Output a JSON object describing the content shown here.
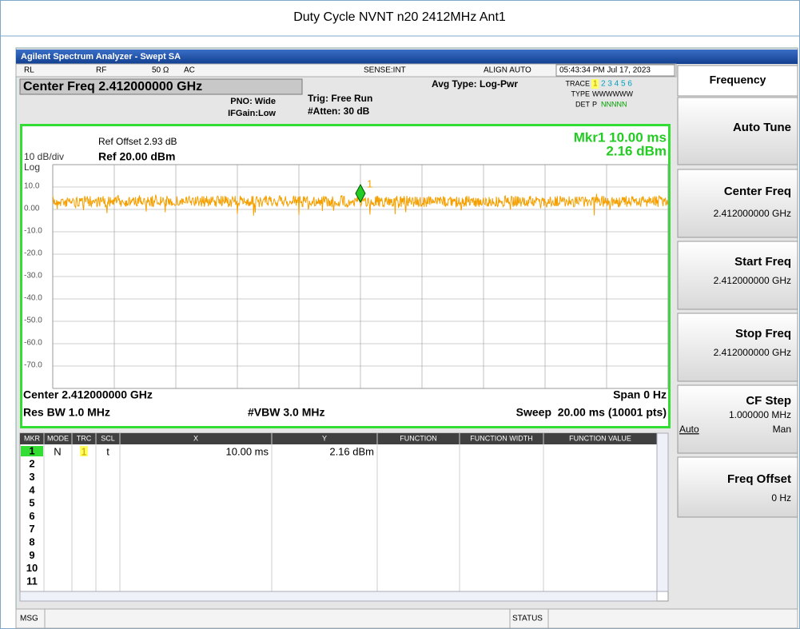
{
  "page_title": "Duty Cycle NVNT n20 2412MHz Ant1",
  "window": {
    "title": "Agilent Spectrum Analyzer - Swept SA"
  },
  "status_bar": {
    "rl": "RL",
    "rf": "RF",
    "impedance": "50 Ω",
    "coupling": "AC",
    "sense": "SENSE:INT",
    "align": "ALIGN AUTO",
    "time": "05:43:34 PM Jul 17, 2023"
  },
  "settings": {
    "center_freq": "Center Freq 2.412000000 GHz",
    "pno": "PNO: Wide",
    "ifgain": "IFGain:Low",
    "trig": "Trig: Free Run",
    "atten": "#Atten: 30 dB",
    "avg_type": "Avg Type: Log-Pwr",
    "trace_label": "TRACE",
    "trace_active": "1",
    "trace_others": "2 3 4 5 6",
    "type_label": "TYPE",
    "type": "WWWWWW",
    "det_label": "DET",
    "det_active": "P",
    "det_others": "NNNNN"
  },
  "graph": {
    "ref_offset": "Ref Offset 2.93 dB",
    "scale": "10 dB/div",
    "ref": "Ref 20.00 dBm",
    "log": "Log",
    "marker_x": "Mkr1 10.00 ms",
    "marker_y": "2.16 dBm",
    "marker_label": "1",
    "y_labels": [
      "10.0",
      "0.00",
      "-10.0",
      "-20.0",
      "-30.0",
      "-40.0",
      "-50.0",
      "-60.0",
      "-70.0"
    ],
    "center": "Center 2.412000000 GHz",
    "span": "Span 0 Hz",
    "rbw": "Res BW 1.0 MHz",
    "vbw": "#VBW 3.0 MHz",
    "sweep": "Sweep  20.00 ms (10001 pts)"
  },
  "marker_table": {
    "columns": [
      "MKR",
      "MODE",
      "TRC",
      "SCL",
      "X",
      "Y",
      "FUNCTION",
      "FUNCTION WIDTH",
      "FUNCTION VALUE"
    ],
    "marker1": {
      "mode": "N",
      "trc": "1",
      "scl": "t",
      "x": "10.00 ms",
      "y": "2.16 dBm"
    },
    "row_numbers": [
      "1",
      "2",
      "3",
      "4",
      "5",
      "6",
      "7",
      "8",
      "9",
      "10",
      "11"
    ]
  },
  "softkeys": {
    "menu": "Frequency",
    "auto_tune": "Auto Tune",
    "center_freq": {
      "label": "Center Freq",
      "value": "2.412000000 GHz"
    },
    "start_freq": {
      "label": "Start Freq",
      "value": "2.412000000 GHz"
    },
    "stop_freq": {
      "label": "Stop Freq",
      "value": "2.412000000 GHz"
    },
    "cf_step": {
      "label": "CF Step",
      "value": "1.000000 MHz",
      "auto": "Auto",
      "man": "Man"
    },
    "freq_offset": {
      "label": "Freq Offset",
      "value": "0 Hz"
    }
  },
  "bottom_bar": {
    "msg": "MSG",
    "status": "STATUS"
  }
}
